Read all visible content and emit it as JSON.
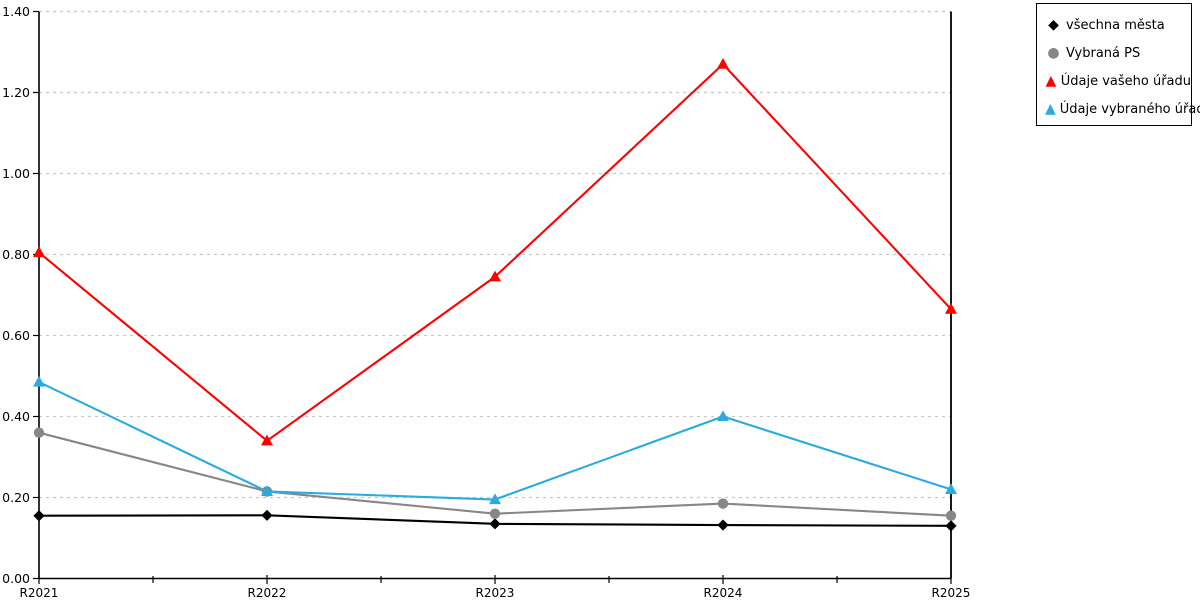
{
  "chart_data": {
    "type": "line",
    "title": "",
    "xlabel": "",
    "ylabel": "",
    "categories": [
      "R2021",
      "R2022",
      "R2023",
      "R2024",
      "R2025"
    ],
    "series": [
      {
        "name": "všechna města",
        "color": "#000000",
        "marker": "diamond",
        "values": [
          0.155,
          0.156,
          0.135,
          0.132,
          0.13
        ]
      },
      {
        "name": "Vybraná PS",
        "color": "#878787",
        "marker": "circle",
        "values": [
          0.36,
          0.215,
          0.16,
          0.185,
          0.155
        ]
      },
      {
        "name": "Údaje vašeho úřadu",
        "color": "#ff0000",
        "marker": "triangle",
        "values": [
          0.805,
          0.34,
          0.745,
          1.27,
          0.665
        ]
      },
      {
        "name": "Údaje vybraného úřadu",
        "color": "#29abe2",
        "marker": "triangle",
        "values": [
          0.485,
          0.215,
          0.195,
          0.4,
          0.22
        ]
      }
    ],
    "ylim": [
      0.0,
      1.4
    ],
    "ytick_step": 0.2,
    "ytick_labels": [
      "0.00",
      "0.20",
      "0.40",
      "0.60",
      "0.80",
      "1.00",
      "1.20",
      "1.40"
    ],
    "grid": "horizontal-dashed",
    "legend_position": "top-right",
    "marker_glyphs": {
      "diamond": "◆",
      "circle": "●",
      "triangle": "▲"
    },
    "colors": {
      "background": "#ffffff",
      "grid": "#c8c8c8",
      "axis": "#000000",
      "legend_border": "#000000"
    }
  }
}
